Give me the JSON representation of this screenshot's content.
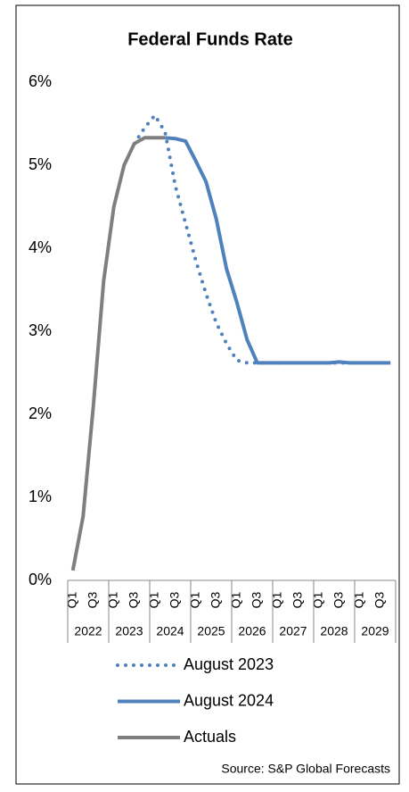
{
  "chart_data": {
    "type": "line",
    "title": "Federal Funds Rate",
    "categories": [
      "Q1",
      null,
      "Q3",
      null,
      "Q1",
      null,
      "Q3",
      null,
      "Q1",
      null,
      "Q3",
      null,
      "Q1",
      null,
      "Q3",
      null,
      "Q1",
      null,
      "Q3",
      null,
      "Q1",
      null,
      "Q3",
      null,
      "Q1",
      null,
      "Q3",
      null,
      "Q1",
      null,
      "Q3",
      null
    ],
    "x_groups": [
      "2022",
      "2023",
      "2024",
      "2025",
      "2026",
      "2027",
      "2028",
      "2029"
    ],
    "series": [
      {
        "name": "August 2023",
        "color": "#4f81bd",
        "dash": "dotted",
        "values": [
          null,
          null,
          null,
          null,
          null,
          null,
          5.26,
          5.45,
          5.6,
          5.4,
          4.75,
          4.3,
          3.85,
          3.45,
          3.1,
          2.85,
          2.65,
          2.62,
          2.62,
          2.62,
          2.62,
          2.62,
          2.62,
          2.62,
          2.62,
          2.62,
          2.62,
          2.62,
          2.62,
          2.62,
          2.62,
          2.62
        ]
      },
      {
        "name": "August 2024",
        "color": "#4f81bd",
        "dash": "solid",
        "values": [
          null,
          null,
          null,
          null,
          null,
          null,
          null,
          null,
          null,
          5.33,
          5.32,
          5.29,
          5.05,
          4.8,
          4.35,
          3.75,
          3.35,
          2.9,
          2.62,
          2.62,
          2.62,
          2.62,
          2.62,
          2.62,
          2.62,
          2.62,
          2.63,
          2.62,
          2.62,
          2.62,
          2.62,
          2.62
        ]
      },
      {
        "name": "Actuals",
        "color": "#7f7f7f",
        "dash": "solid",
        "values": [
          0.12,
          0.77,
          2.1,
          3.6,
          4.5,
          5.0,
          5.26,
          5.33,
          5.33,
          5.33,
          null,
          null,
          null,
          null,
          null,
          null,
          null,
          null,
          null,
          null,
          null,
          null,
          null,
          null,
          null,
          null,
          null,
          null,
          null,
          null,
          null,
          null
        ]
      }
    ],
    "ylim": [
      0,
      6
    ],
    "yticks": [
      {
        "value": 0,
        "label": "0%"
      },
      {
        "value": 1,
        "label": "1%"
      },
      {
        "value": 2,
        "label": "2%"
      },
      {
        "value": 3,
        "label": "3%"
      },
      {
        "value": 4,
        "label": "4%"
      },
      {
        "value": 5,
        "label": "5%"
      },
      {
        "value": 6,
        "label": "6%"
      }
    ],
    "grid": false,
    "source": "Source: S&P Global Forecasts"
  }
}
